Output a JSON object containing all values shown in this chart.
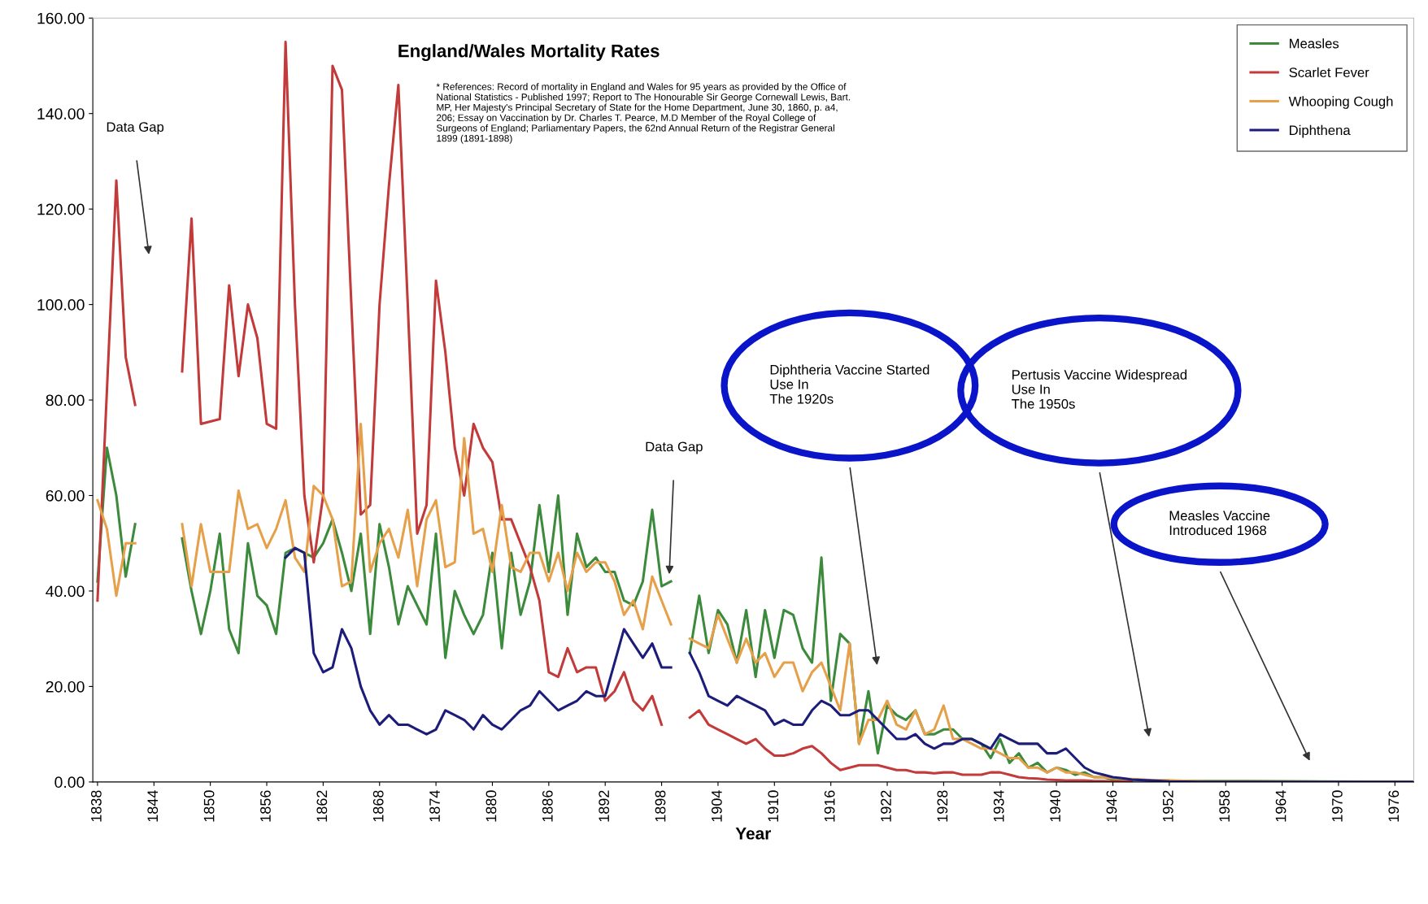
{
  "chart_data": {
    "type": "line",
    "title": "England/Wales Mortality Rates",
    "xlabel": "Year",
    "xlim": [
      1837.5,
      1978
    ],
    "xticks": [
      1838,
      1844,
      1850,
      1856,
      1862,
      1868,
      1874,
      1880,
      1886,
      1892,
      1898,
      1904,
      1910,
      1916,
      1922,
      1928,
      1934,
      1940,
      1946,
      1952,
      1958,
      1964,
      1970,
      1976
    ],
    "ylim": [
      0,
      160
    ],
    "yticks": [
      {
        "value": 0,
        "label": "0.00"
      },
      {
        "value": 20,
        "label": "20.00"
      },
      {
        "value": 40,
        "label": "40.00"
      },
      {
        "value": 60,
        "label": "60.00"
      },
      {
        "value": 80,
        "label": "80.00"
      },
      {
        "value": 100,
        "label": "100.00"
      },
      {
        "value": 120,
        "label": "120.00"
      },
      {
        "value": 140,
        "label": "140.00"
      },
      {
        "value": 160,
        "label": "160.00"
      }
    ],
    "grid": false,
    "legend": "top right",
    "marker": "none",
    "line_style": "solid",
    "series": [
      {
        "name": "Measles",
        "color": "#3c8a3c",
        "x": [
          1838,
          1839,
          1840,
          1841,
          1842,
          1844,
          1847,
          1848,
          1849,
          1850,
          1851,
          1852,
          1853,
          1854,
          1855,
          1856,
          1857,
          1858,
          1859,
          1860,
          1861,
          1862,
          1863,
          1864,
          1865,
          1866,
          1867,
          1868,
          1869,
          1870,
          1871,
          1872,
          1873,
          1874,
          1875,
          1876,
          1877,
          1878,
          1879,
          1880,
          1881,
          1882,
          1883,
          1884,
          1885,
          1886,
          1887,
          1888,
          1889,
          1890,
          1891,
          1892,
          1893,
          1894,
          1895,
          1896,
          1897,
          1898,
          1899,
          1900,
          1901,
          1902,
          1903,
          1904,
          1905,
          1906,
          1907,
          1908,
          1909,
          1910,
          1911,
          1912,
          1913,
          1914,
          1915,
          1916,
          1917,
          1918,
          1919,
          1920,
          1921,
          1922,
          1923,
          1924,
          1925,
          1926,
          1927,
          1928,
          1929,
          1930,
          1931,
          1932,
          1933,
          1934,
          1935,
          1936,
          1937,
          1938,
          1939,
          1940,
          1941,
          1942,
          1943,
          1944,
          1945,
          1946,
          1948,
          1950,
          1955,
          1960,
          1968,
          1978
        ],
        "values": [
          42,
          70,
          60,
          43,
          54,
          null,
          51,
          40,
          31,
          40,
          52,
          32,
          27,
          50,
          39,
          37,
          31,
          48,
          49,
          48,
          47,
          50,
          55,
          48,
          40,
          52,
          31,
          54,
          45,
          33,
          41,
          37,
          33,
          52,
          26,
          40,
          35,
          31,
          35,
          48,
          28,
          48,
          35,
          42,
          58,
          44,
          60,
          35,
          52,
          45,
          47,
          44,
          44,
          38,
          37,
          42,
          57,
          41,
          42,
          null,
          27,
          39,
          27,
          36,
          33,
          25,
          36,
          22,
          36,
          26,
          36,
          35,
          28,
          25,
          47,
          17,
          31,
          29,
          8,
          19,
          6,
          16,
          14,
          13,
          15,
          10,
          10,
          11,
          11,
          9,
          9,
          8,
          5,
          9,
          4,
          6,
          3,
          4,
          2,
          3,
          2.5,
          1.5,
          2,
          1,
          1,
          0.5,
          0.5,
          0.3,
          0.2,
          0.2,
          0.1,
          0
        ]
      },
      {
        "name": "Scarlet Fever",
        "color": "#c23a3a",
        "x": [
          1838,
          1839,
          1840,
          1841,
          1842,
          1844,
          1847,
          1848,
          1849,
          1850,
          1851,
          1852,
          1853,
          1854,
          1855,
          1856,
          1857,
          1858,
          1859,
          1860,
          1861,
          1862,
          1863,
          1864,
          1865,
          1866,
          1867,
          1868,
          1869,
          1870,
          1871,
          1872,
          1873,
          1874,
          1875,
          1876,
          1877,
          1878,
          1879,
          1880,
          1881,
          1882,
          1883,
          1884,
          1885,
          1886,
          1887,
          1888,
          1889,
          1890,
          1891,
          1892,
          1893,
          1894,
          1895,
          1896,
          1897,
          1898,
          1900,
          1901,
          1902,
          1903,
          1904,
          1905,
          1906,
          1907,
          1908,
          1909,
          1910,
          1911,
          1912,
          1913,
          1914,
          1915,
          1916,
          1917,
          1918,
          1919,
          1920,
          1921,
          1922,
          1923,
          1924,
          1925,
          1926,
          1927,
          1928,
          1929,
          1930,
          1931,
          1932,
          1933,
          1934,
          1935,
          1936,
          1937,
          1938,
          1939,
          1940,
          1941,
          1942,
          1943,
          1944,
          1945,
          1946,
          1948
        ],
        "values": [
          38,
          82,
          126,
          89,
          79,
          null,
          86,
          118,
          75,
          75.5,
          76,
          104,
          85,
          100,
          93,
          75,
          74,
          155,
          100,
          60,
          46,
          60,
          150,
          145,
          100,
          56,
          58,
          100,
          125,
          146,
          100,
          52,
          58,
          105,
          90,
          70,
          60,
          75,
          70,
          67,
          55,
          55,
          50,
          45,
          38,
          23,
          22,
          28,
          23,
          24,
          24,
          17,
          19,
          23,
          17,
          15,
          18,
          12,
          null,
          13.5,
          15,
          12,
          11,
          10,
          9,
          8,
          9,
          7,
          5.5,
          5.5,
          6,
          7,
          7.5,
          6,
          4,
          2.5,
          3,
          3.5,
          3.5,
          3.5,
          3,
          2.5,
          2.5,
          2,
          2,
          1.8,
          2,
          2,
          1.5,
          1.5,
          1.5,
          2,
          2,
          1.5,
          1,
          0.8,
          0.7,
          0.5,
          0.4,
          0.3,
          0.3,
          0.3,
          0.2,
          0.2,
          0.1,
          0.1
        ]
      },
      {
        "name": "Whooping Cough",
        "color": "#e6a04a",
        "x": [
          1838,
          1839,
          1840,
          1841,
          1842,
          1844,
          1847,
          1848,
          1849,
          1850,
          1851,
          1852,
          1853,
          1854,
          1855,
          1856,
          1857,
          1858,
          1859,
          1860,
          1861,
          1862,
          1863,
          1864,
          1865,
          1866,
          1867,
          1868,
          1869,
          1870,
          1871,
          1872,
          1873,
          1874,
          1875,
          1876,
          1877,
          1878,
          1879,
          1880,
          1881,
          1882,
          1883,
          1884,
          1885,
          1886,
          1887,
          1888,
          1889,
          1890,
          1891,
          1892,
          1893,
          1894,
          1895,
          1896,
          1897,
          1898,
          1899,
          1900,
          1901,
          1902,
          1903,
          1904,
          1905,
          1906,
          1907,
          1908,
          1909,
          1910,
          1911,
          1912,
          1913,
          1914,
          1915,
          1916,
          1917,
          1918,
          1919,
          1920,
          1921,
          1922,
          1923,
          1924,
          1925,
          1926,
          1927,
          1928,
          1929,
          1930,
          1931,
          1932,
          1933,
          1934,
          1935,
          1936,
          1937,
          1938,
          1939,
          1940,
          1941,
          1942,
          1943,
          1944,
          1945,
          1946,
          1948,
          1950,
          1952,
          1956,
          1978
        ],
        "values": [
          59,
          53,
          39,
          50,
          50,
          null,
          54,
          41,
          54,
          44,
          44,
          44,
          61,
          53,
          54,
          49,
          53,
          59,
          47,
          44,
          62,
          60,
          55,
          41,
          42,
          75,
          44,
          50,
          53,
          47,
          57,
          41,
          55,
          59,
          45,
          46,
          72,
          52,
          53,
          44,
          58,
          45,
          44,
          48,
          48,
          42,
          48,
          40,
          48,
          44,
          46,
          46,
          42,
          35,
          38,
          32,
          43,
          38,
          33,
          null,
          30,
          29,
          28,
          35,
          30,
          25,
          30,
          25,
          27,
          22,
          25,
          25,
          19,
          23,
          25,
          20,
          15,
          29,
          8,
          13,
          13,
          17,
          12,
          11,
          15,
          10,
          11,
          16,
          9,
          9,
          8,
          7,
          7,
          6,
          5,
          5,
          3,
          3,
          2,
          3,
          2,
          2,
          1.5,
          1,
          1,
          0.8,
          0.6,
          0.4,
          0.3,
          0.1,
          0
        ]
      },
      {
        "name": "Diphthena",
        "color": "#1c1c7a",
        "x": [
          1858,
          1859,
          1860,
          1861,
          1862,
          1863,
          1864,
          1865,
          1866,
          1867,
          1868,
          1869,
          1870,
          1871,
          1872,
          1873,
          1874,
          1875,
          1876,
          1877,
          1878,
          1879,
          1880,
          1881,
          1882,
          1883,
          1884,
          1885,
          1886,
          1887,
          1888,
          1889,
          1890,
          1891,
          1892,
          1893,
          1894,
          1895,
          1896,
          1897,
          1898,
          1899,
          1900,
          1901,
          1902,
          1903,
          1904,
          1905,
          1906,
          1907,
          1908,
          1909,
          1910,
          1911,
          1912,
          1913,
          1914,
          1915,
          1916,
          1917,
          1918,
          1919,
          1920,
          1921,
          1922,
          1923,
          1924,
          1925,
          1926,
          1927,
          1928,
          1929,
          1930,
          1931,
          1932,
          1933,
          1934,
          1935,
          1936,
          1937,
          1938,
          1939,
          1940,
          1941,
          1942,
          1943,
          1944,
          1945,
          1946,
          1947,
          1948,
          1950,
          1952,
          1955,
          1978
        ],
        "values": [
          47,
          49,
          48,
          27,
          23,
          24,
          32,
          28,
          20,
          15,
          12,
          14,
          12,
          12,
          11,
          10,
          11,
          15,
          14,
          13,
          11,
          14,
          12,
          11,
          13,
          15,
          16,
          19,
          17,
          15,
          16,
          17,
          19,
          18,
          18,
          25,
          32,
          29,
          26,
          29,
          24,
          24,
          null,
          27,
          23,
          18,
          17,
          16,
          18,
          17,
          16,
          15,
          12,
          13,
          12,
          12,
          15,
          17,
          16,
          14,
          14,
          15,
          15,
          13,
          11,
          9,
          9,
          10,
          8,
          7,
          8,
          8,
          9,
          9,
          8,
          7,
          10,
          9,
          8,
          8,
          8,
          6,
          6,
          7,
          5,
          3,
          2,
          1.5,
          1,
          0.8,
          0.5,
          0.3,
          0.1,
          0,
          0
        ]
      }
    ],
    "annotations": [
      "* References: Record of mortality in England and Wales for 95 years as provided by the Office of\nNational Statistics - Published 1997; Report to The Honourable Sir George Cornewall Lewis, Bart.\nMP, Her Majesty's Principal Secretary of State for the Home Department, June 30, 1860, p. a4,\n206; Essay on Vaccination by Dr. Charles T. Pearce, M.D Member of the Royal College of\nSurgeons of England; Parliamentary Papers, the 62nd Annual Return of the Registrar General\n1899 (1891-1898)",
      "Data Gap",
      "Data Gap",
      "Diphtheria Vaccine Started\nUse In\nThe 1920s",
      "Pertusis Vaccine Widespread\nUse In\nThe 1950s",
      "Measles Vaccine\nIntroduced 1968"
    ]
  }
}
